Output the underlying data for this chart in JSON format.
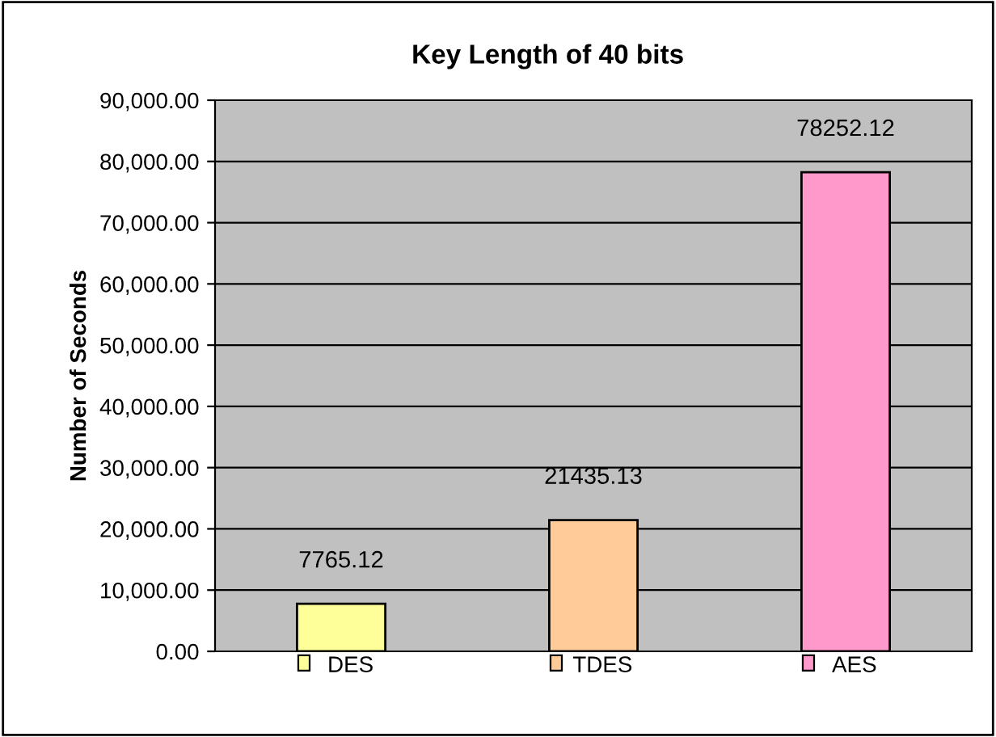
{
  "chart_data": {
    "type": "bar",
    "title": "Key Length of 40 bits",
    "ylabel": "Number of Seconds",
    "categories": [
      "DES",
      "TDES",
      "AES"
    ],
    "values": [
      7765.12,
      21435.13,
      78252.12
    ],
    "colors": [
      "#ffff99",
      "#ffcc99",
      "#ff99cc"
    ],
    "ylim": [
      0,
      90000
    ],
    "yticks": [
      {
        "value": 0,
        "label": "0.00"
      },
      {
        "value": 10000,
        "label": "10,000.00"
      },
      {
        "value": 20000,
        "label": "20,000.00"
      },
      {
        "value": 30000,
        "label": "30,000.00"
      },
      {
        "value": 40000,
        "label": "40,000.00"
      },
      {
        "value": 50000,
        "label": "50,000.00"
      },
      {
        "value": 60000,
        "label": "60,000.00"
      },
      {
        "value": 70000,
        "label": "70,000.00"
      },
      {
        "value": 80000,
        "label": "80,000.00"
      },
      {
        "value": 90000,
        "label": "90,000.00"
      }
    ],
    "grid": "y",
    "data_labels": true
  }
}
